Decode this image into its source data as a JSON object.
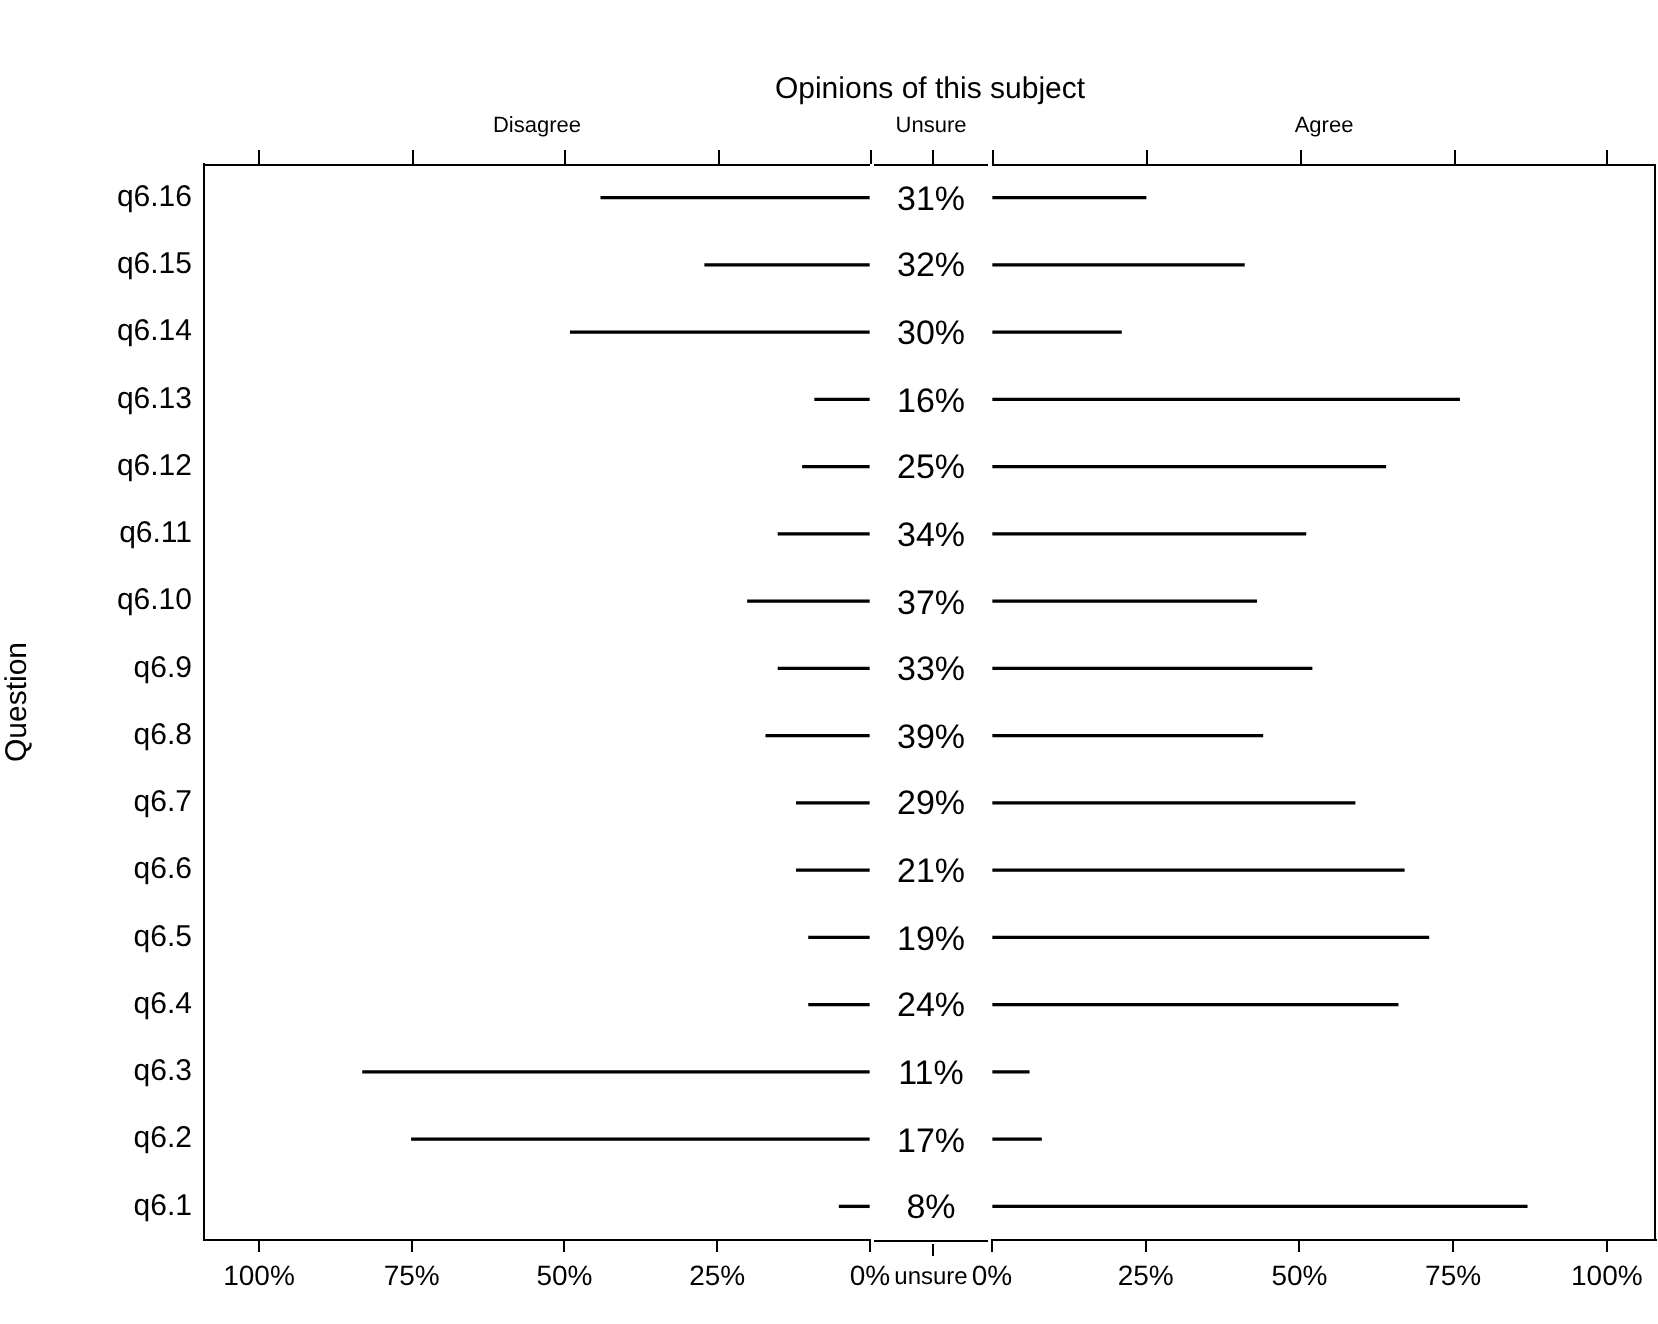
{
  "chart_data": [
    {
      "type": "bar",
      "orientation": "horizontal",
      "title": "Opinions of this subject",
      "subtitle": "Disagree",
      "ylabel": "Question",
      "categories": [
        "q6.16",
        "q6.15",
        "q6.14",
        "q6.13",
        "q6.12",
        "q6.11",
        "q6.10",
        "q6.9",
        "q6.8",
        "q6.7",
        "q6.6",
        "q6.5",
        "q6.4",
        "q6.3",
        "q6.2",
        "q6.1"
      ],
      "values": [
        44,
        27,
        49,
        9,
        11,
        15,
        20,
        15,
        17,
        12,
        12,
        10,
        10,
        83,
        75,
        5
      ],
      "color": "#000000",
      "xlim": [
        109,
        0
      ],
      "xticks": [
        {
          "value": 100,
          "label": "100%"
        },
        {
          "value": 75,
          "label": "75%"
        },
        {
          "value": 50,
          "label": "50%"
        },
        {
          "value": 25,
          "label": "25%"
        },
        {
          "value": 0,
          "label": "0%"
        }
      ]
    },
    {
      "type": "other",
      "subtitle": "Unsure",
      "xlabel": "unsure",
      "values": [
        31,
        32,
        30,
        16,
        25,
        34,
        37,
        33,
        39,
        29,
        21,
        19,
        24,
        11,
        17,
        8
      ],
      "value_labels": [
        "31%",
        "32%",
        "30%",
        "16%",
        "25%",
        "34%",
        "37%",
        "33%",
        "39%",
        "29%",
        "21%",
        "19%",
        "24%",
        "11%",
        "17%",
        "8%"
      ],
      "data_labels": true
    },
    {
      "type": "bar",
      "orientation": "horizontal",
      "subtitle": "Agree",
      "categories": [
        null,
        null,
        null,
        null,
        null,
        null,
        null,
        null,
        null,
        null,
        null,
        null,
        null,
        null,
        null,
        null
      ],
      "values": [
        25,
        41,
        21,
        76,
        64,
        51,
        43,
        52,
        44,
        59,
        67,
        71,
        66,
        6,
        8,
        87
      ],
      "color": "#000000",
      "xlim": [
        0,
        108
      ],
      "xticks": [
        {
          "value": 0,
          "label": "0%"
        },
        {
          "value": 25,
          "label": "25%"
        },
        {
          "value": 50,
          "label": "50%"
        },
        {
          "value": 75,
          "label": "75%"
        },
        {
          "value": 100,
          "label": "100%"
        }
      ],
      "tick_labels": "x"
    }
  ]
}
